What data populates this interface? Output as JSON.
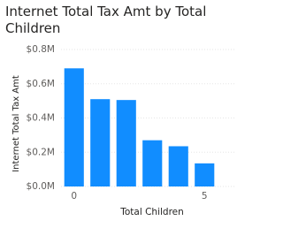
{
  "chart_data": {
    "type": "bar",
    "title": "Internet Total Tax Amt by Total Children",
    "x_label": "Total Children",
    "y_label": "Internet Total Tax Amt",
    "x": [
      0,
      1,
      2,
      3,
      4,
      5
    ],
    "values": [
      0.69,
      0.51,
      0.505,
      0.27,
      0.235,
      0.135
    ],
    "color": "#118DFF",
    "xlim": [
      -0.5,
      5.5
    ],
    "xticks": [
      0,
      5
    ],
    "ylim": [
      0,
      0.8
    ],
    "yticks": [
      {
        "value": 0,
        "label": "$0.0M"
      },
      {
        "value": 0.2,
        "label": "$0.2M"
      },
      {
        "value": 0.4,
        "label": "$0.4M"
      },
      {
        "value": 0.6,
        "label": "$0.6M"
      },
      {
        "value": 0.8,
        "label": "$0.8M"
      }
    ],
    "grid": true
  }
}
